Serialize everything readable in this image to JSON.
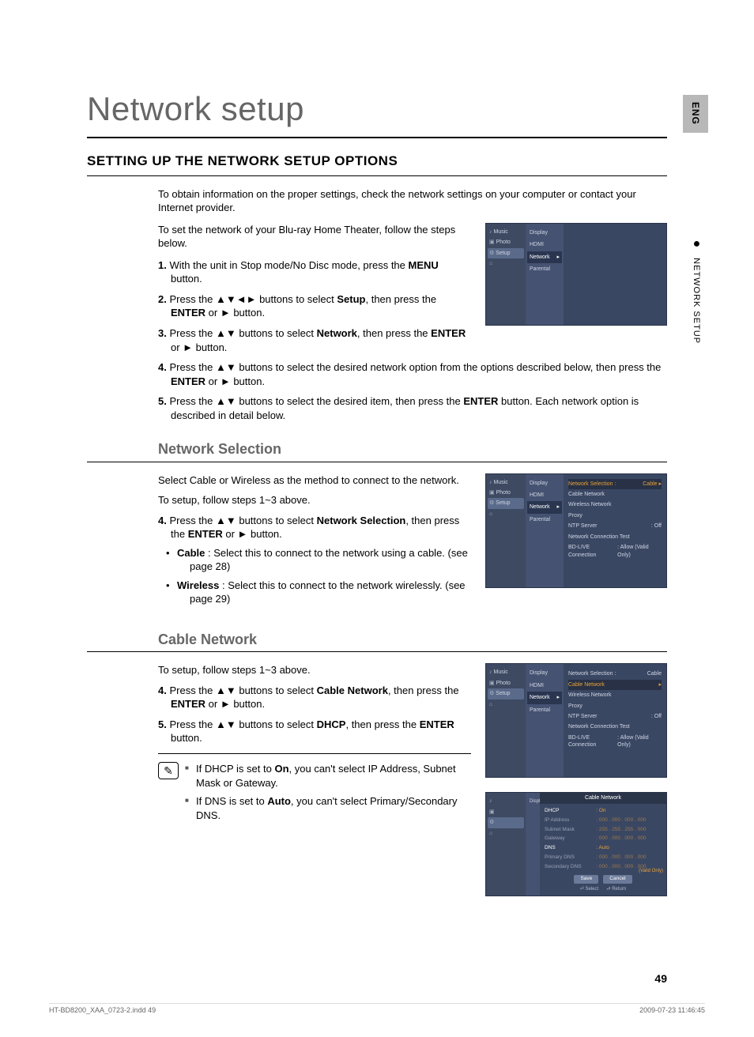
{
  "page": {
    "title": "Network setup",
    "section_heading": "SETTING UP THE NETWORK SETUP OPTIONS",
    "lang_tab": "ENG",
    "side_label": "NETWORK SETUP",
    "page_number": "49",
    "footer_left": "HT-BD8200_XAA_0723-2.indd   49",
    "footer_right": "2009-07-23     11:46:45"
  },
  "intro": "To obtain information on the proper settings, check the network settings on your computer or contact your Internet provider.",
  "intro2": "To set the network of your Blu-ray Home Theater, follow the steps below.",
  "steps": [
    {
      "n": "1.",
      "pre": "With the unit in Stop mode/No Disc mode, press the ",
      "bold": "MENU",
      "post": " button."
    },
    {
      "n": "2.",
      "pre": "Press the ▲▼◄► buttons to select ",
      "bold": "Setup",
      "post": ", then press the ",
      "bold2": "ENTER",
      "post2": " or ► button."
    },
    {
      "n": "3.",
      "pre": "Press the ▲▼ buttons to select ",
      "bold": "Network",
      "post": ", then press the ",
      "bold2": "ENTER",
      "post2": " or ► button."
    },
    {
      "n": "4.",
      "pre": "Press the ▲▼ buttons to select the desired network option from the options described below, then press the ",
      "bold": "ENTER",
      "post": " or ► button."
    },
    {
      "n": "5.",
      "pre": "Press the ▲▼ buttons to select the desired item, then press the ",
      "bold": "ENTER",
      "post": " button. Each network option is described in detail below."
    }
  ],
  "ns": {
    "heading": "Network Selection",
    "p1": "Select Cable or Wireless as the method to connect to the network.",
    "p2": "To setup, follow steps 1~3 above.",
    "step4": {
      "n": "4.",
      "pre": "Press the ▲▼ buttons to select ",
      "bold": "Network Selection",
      "post": ", then press the ",
      "bold2": "ENTER",
      "post2": " or ► button."
    },
    "bullets": [
      {
        "bold": "Cable",
        "text": " : Select this to connect to the network using a cable. (see page 28)"
      },
      {
        "bold": "Wireless",
        "text": " : Select this to connect to the network wirelessly. (see page 29)"
      }
    ]
  },
  "cn": {
    "heading": "Cable Network",
    "p1": "To setup, follow steps 1~3 above.",
    "step4": {
      "n": "4.",
      "pre": "Press the ▲▼ buttons to select ",
      "bold": "Cable Network",
      "post": ", then press the ",
      "bold2": "ENTER",
      "post2": " or ► button."
    },
    "step5": {
      "n": "5.",
      "pre": "Press the ▲▼ buttons to select ",
      "bold": "DHCP",
      "post": ", then press the ",
      "bold2": "ENTER",
      "post2": " button."
    },
    "notes": [
      {
        "pre": "If DHCP is set to ",
        "bold": "On",
        "post": ", you can't select IP Address, Subnet Mask or Gateway."
      },
      {
        "pre": "If DNS is set to ",
        "bold": "Auto",
        "post": ", you can't select Primary/Secondary DNS."
      }
    ]
  },
  "shot_common": {
    "left_items": [
      "Music",
      "Photo",
      "Setup"
    ],
    "mid_items": [
      "Display",
      "HDMI",
      "Network",
      "Parental"
    ]
  },
  "shot2": {
    "rows": [
      {
        "l": "Network Selection :",
        "v": "Cable",
        "sel": true
      },
      {
        "l": "Cable Network",
        "v": ""
      },
      {
        "l": "Wireless Network",
        "v": ""
      },
      {
        "l": "Proxy",
        "v": ""
      },
      {
        "l": "NTP Server",
        "v": ": Off"
      },
      {
        "l": "Network Connection Test",
        "v": ""
      },
      {
        "l": "BD-LIVE Connection",
        "v": ": Allow (Valid Only)"
      }
    ]
  },
  "shot3": {
    "rows": [
      {
        "l": "Network Selection :",
        "v": "Cable"
      },
      {
        "l": "Cable Network",
        "v": "",
        "sel": true
      },
      {
        "l": "Wireless Network",
        "v": ""
      },
      {
        "l": "Proxy",
        "v": ""
      },
      {
        "l": "NTP Server",
        "v": ": Off"
      },
      {
        "l": "Network Connection Test",
        "v": ""
      },
      {
        "l": "BD-LIVE Connection",
        "v": ": Allow (Valid Only)"
      }
    ]
  },
  "shot4": {
    "title": "Cable Network",
    "rows": [
      {
        "l": "DHCP",
        "v": ": On",
        "on": true
      },
      {
        "l": "IP Address",
        "v": ": 000 . 000 . 000 . 000"
      },
      {
        "l": "Subnet Mask",
        "v": ": 255 . 255 . 255 . 000"
      },
      {
        "l": "Gateway",
        "v": ": 000 . 000 . 000 . 000"
      },
      {
        "l": "DNS",
        "v": ": Auto",
        "on": true
      },
      {
        "l": "Primary DNS",
        "v": ": 000 . 000 . 000 . 000"
      },
      {
        "l": "Secondary DNS",
        "v": ": 000 . 000 . 000 . 000"
      }
    ],
    "side_note": "(Valid Only)",
    "buttons": [
      "Save",
      "Cancel"
    ],
    "footer": [
      "⏎ Select",
      "⮐ Return"
    ]
  }
}
